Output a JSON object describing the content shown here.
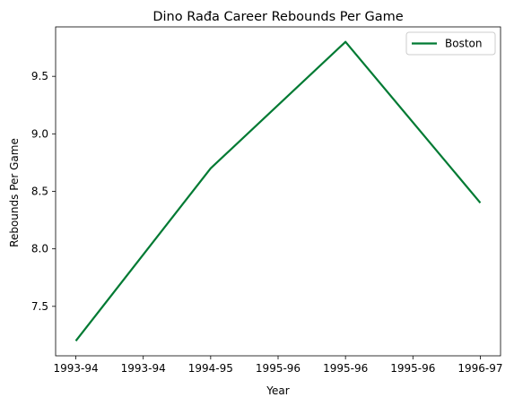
{
  "chart_data": {
    "type": "line",
    "title": "Dino Rađa Career Rebounds Per Game",
    "xlabel": "Year",
    "ylabel": "Rebounds Per Game",
    "x_tick_labels": [
      "1993-94",
      "1993-94",
      "1994-95",
      "1995-96",
      "1995-96",
      "1995-96",
      "1996-97"
    ],
    "x_tick_positions": [
      0,
      0.5,
      1,
      1.5,
      2,
      2.5,
      3
    ],
    "categories": [
      "1993-94",
      "1994-95",
      "1995-96",
      "1996-97"
    ],
    "series": [
      {
        "name": "Boston",
        "x": [
          0,
          1,
          2,
          3
        ],
        "values": [
          7.2,
          8.7,
          9.8,
          8.4
        ],
        "color": "#007a33"
      }
    ],
    "y_ticks": [
      7.5,
      8.0,
      8.5,
      9.0,
      9.5
    ],
    "y_tick_labels": [
      "7.5",
      "8.0",
      "8.5",
      "9.0",
      "9.5"
    ],
    "xlim": [
      -0.15,
      3.15
    ],
    "ylim": [
      7.07,
      9.93
    ],
    "grid": false,
    "legend_position": "top-right"
  }
}
